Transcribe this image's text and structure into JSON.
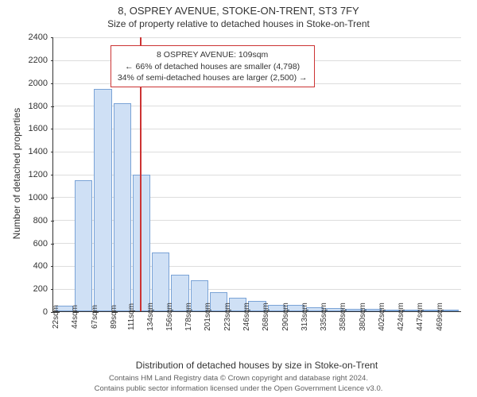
{
  "title": "8, OSPREY AVENUE, STOKE-ON-TRENT, ST3 7FY",
  "subtitle": "Size of property relative to detached houses in Stoke-on-Trent",
  "chart": {
    "type": "histogram",
    "ylabel": "Number of detached properties",
    "xlabel": "Distribution of detached houses by size in Stoke-on-Trent",
    "ylim": [
      0,
      2400
    ],
    "ytick_step": 200,
    "yticks": [
      0,
      200,
      400,
      600,
      800,
      1000,
      1200,
      1400,
      1600,
      1800,
      2000,
      2200,
      2400
    ],
    "x_categories": [
      "22sqm",
      "44sqm",
      "67sqm",
      "89sqm",
      "111sqm",
      "134sqm",
      "156sqm",
      "178sqm",
      "201sqm",
      "223sqm",
      "246sqm",
      "268sqm",
      "290sqm",
      "313sqm",
      "335sqm",
      "358sqm",
      "380sqm",
      "402sqm",
      "424sqm",
      "447sqm",
      "469sqm"
    ],
    "values": [
      50,
      1150,
      1950,
      1820,
      1200,
      520,
      320,
      270,
      170,
      120,
      90,
      60,
      55,
      40,
      30,
      25,
      20,
      15,
      10,
      8,
      10
    ],
    "bar_fill": "#cfe0f5",
    "bar_border": "#7aa3d6",
    "grid_color": "#dddddd",
    "axis_color": "#333333",
    "background_color": "#ffffff",
    "marker_line": {
      "position_index": 3.95,
      "color": "#cc3333"
    },
    "annotation": {
      "line1": "8 OSPREY AVENUE: 109sqm",
      "line2": "← 66% of detached houses are smaller (4,798)",
      "line3": "34% of semi-detached houses are larger (2,500) →",
      "border_color": "#cc3333",
      "fontsize": 10.5
    }
  },
  "footer": {
    "line1": "Contains HM Land Registry data © Crown copyright and database right 2024.",
    "line2": "Contains public sector information licensed under the Open Government Licence v3.0."
  }
}
